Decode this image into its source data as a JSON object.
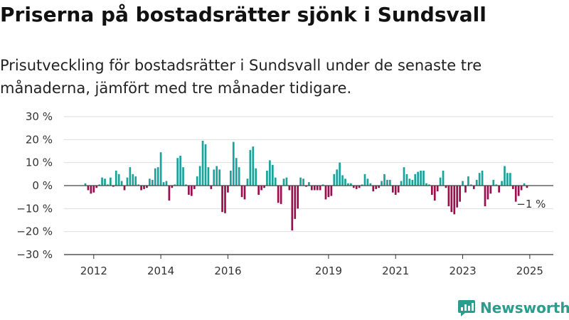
{
  "header": {
    "title": "Priserna på bostadsrätter sjönk i Sundsvall",
    "subtitle": "Prisutveckling för bostadsrätter i Sundsvall under de senaste tre månaderna, jämfört med tre månader tidigare."
  },
  "brand": {
    "name": "Newsworthy",
    "color": "#2a9d8f"
  },
  "colors": {
    "positive": "#1aa39a",
    "negative": "#9c0f4e",
    "grid": "#dddddd",
    "axis": "#333333"
  },
  "chart_data": {
    "type": "bar",
    "title": "Priserna på bostadsrätter sjönk i Sundsvall",
    "subtitle": "Prisutveckling för bostadsrätter i Sundsvall under de senaste tre månaderna, jämfört med tre månader tidigare.",
    "xlabel": "",
    "ylabel": "",
    "ylim": [
      -30,
      30
    ],
    "y_ticks": [
      30,
      20,
      10,
      0,
      -10,
      -20,
      -30
    ],
    "y_tick_labels": [
      "30 %",
      "20 %",
      "10 %",
      "0 %",
      "−10 %",
      "−20 %",
      "−30 %"
    ],
    "x_tick_labels": [
      "2012",
      "2014",
      "2016",
      "2019",
      "2021",
      "2023",
      "2025"
    ],
    "x_tick_dates": [
      "2012-01",
      "2014-01",
      "2016-01",
      "2019-01",
      "2021-01",
      "2023-01",
      "2025-01"
    ],
    "grid": true,
    "period": {
      "start": "2011-10",
      "end": "2025-01",
      "frequency": "monthly"
    },
    "values": [
      1,
      -2,
      -3.5,
      -3,
      -1,
      0.5,
      3.5,
      3,
      0.5,
      3.5,
      -0.5,
      6.5,
      5,
      2,
      -2,
      3.5,
      8,
      5,
      4,
      0.5,
      -2,
      -1.5,
      -1,
      3,
      2.5,
      7.5,
      8,
      14.5,
      1.5,
      2,
      -6.5,
      -1,
      0.5,
      12,
      13,
      8,
      0.5,
      -4,
      -4.5,
      -1.5,
      4,
      8.5,
      19.5,
      18,
      8,
      -1.5,
      7,
      8.5,
      7,
      -11.5,
      -12,
      -3,
      6.5,
      19,
      12,
      8,
      -5,
      -6,
      3,
      15.5,
      17,
      7.5,
      -4,
      -2,
      -1,
      6.5,
      11,
      9,
      3.5,
      -7.5,
      -8,
      3,
      3.5,
      -2,
      -19.5,
      -14.5,
      -10,
      3.5,
      3,
      -0.5,
      1.5,
      -2,
      -2,
      -2,
      -2,
      0.5,
      -6,
      -5,
      -4.5,
      5,
      7,
      10,
      4.5,
      3,
      1,
      1,
      -1,
      -1.5,
      -1,
      0.5,
      5,
      3,
      1,
      -2.5,
      -1.5,
      -1,
      2,
      5,
      2.5,
      2.5,
      -3,
      -4,
      -3,
      2,
      8,
      5,
      3,
      2.5,
      5,
      6,
      6.5,
      6.5,
      1,
      0.5,
      -4,
      -6.5,
      -2.5,
      3.5,
      6.5,
      -1,
      -9,
      -11.5,
      -12.5,
      -9.5,
      -7,
      2,
      -3,
      4,
      0.5,
      -1.5,
      2.5,
      5.5,
      6.5,
      -9,
      -6,
      -3.5,
      2.5,
      0.5,
      -3,
      2,
      8.5,
      5.5,
      5.5,
      -1.5,
      -7,
      -4.5,
      -2,
      1,
      -1
    ],
    "annotations": [
      {
        "label": "−1 %",
        "date": "2025-01",
        "value": -1
      }
    ]
  }
}
